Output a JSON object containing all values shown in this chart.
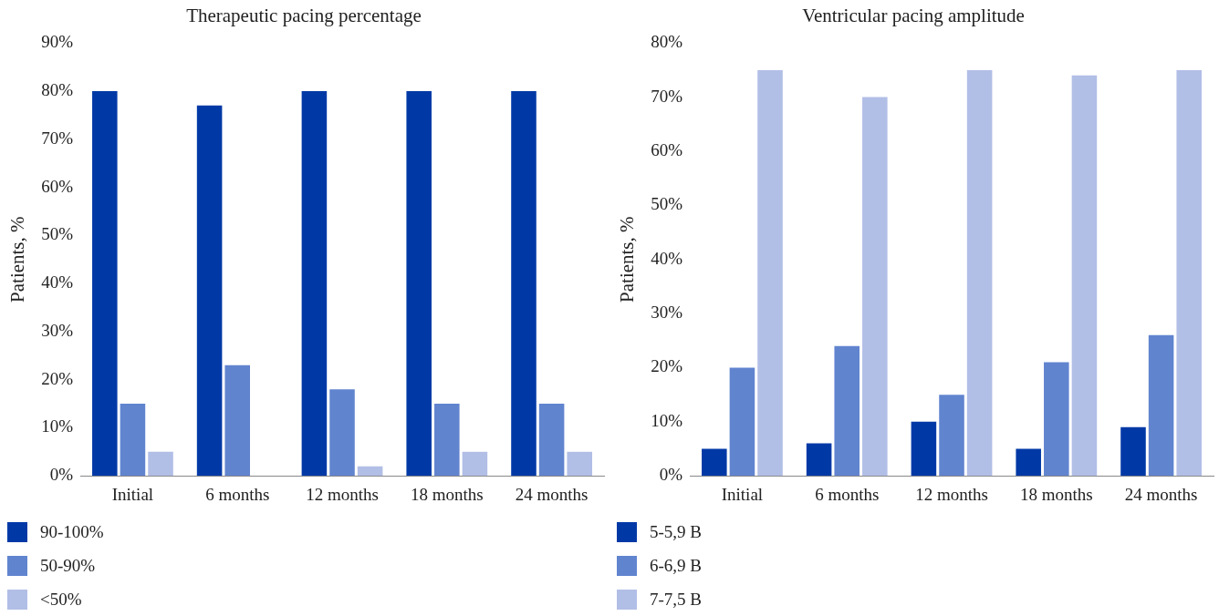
{
  "chart_data": [
    {
      "type": "bar",
      "title": "Therapeutic pacing percentage",
      "ylabel": "Patients, %",
      "categories": [
        "Initial",
        "6 months",
        "12 months",
        "18 months",
        "24 months"
      ],
      "series": [
        {
          "name": "90-100%",
          "color": "#0039a6",
          "values": [
            80,
            77,
            80,
            80,
            80
          ]
        },
        {
          "name": "50-90%",
          "color": "#6184cf",
          "values": [
            15,
            23,
            18,
            15,
            15
          ]
        },
        {
          "name": "<50%",
          "color": "#b1bee6",
          "values": [
            5,
            0,
            2,
            5,
            5
          ]
        }
      ],
      "ylim": [
        0,
        90
      ],
      "yticks": [
        {
          "value": 0,
          "label": "0%"
        },
        {
          "value": 10,
          "label": "10%"
        },
        {
          "value": 20,
          "label": "20%"
        },
        {
          "value": 30,
          "label": "30%"
        },
        {
          "value": 40,
          "label": "40%"
        },
        {
          "value": 50,
          "label": "50%"
        },
        {
          "value": 60,
          "label": "60%"
        },
        {
          "value": 70,
          "label": "70%"
        },
        {
          "value": 80,
          "label": "80%"
        },
        {
          "value": 90,
          "label": "90%"
        }
      ],
      "grid": false,
      "legend": "bottom left"
    },
    {
      "type": "bar",
      "title": "Ventricular pacing amplitude",
      "ylabel": "Patients, %",
      "categories": [
        "Initial",
        "6 months",
        "12 months",
        "18 months",
        "24 months"
      ],
      "series": [
        {
          "name": "5-5,9 В",
          "color": "#0039a6",
          "values": [
            5,
            6,
            10,
            5,
            9
          ]
        },
        {
          "name": "6-6,9 В",
          "color": "#6184cf",
          "values": [
            20,
            24,
            15,
            21,
            26
          ]
        },
        {
          "name": "7-7,5 В",
          "color": "#b1bee6",
          "values": [
            75,
            70,
            75,
            74,
            75
          ]
        }
      ],
      "ylim": [
        0,
        80
      ],
      "yticks": [
        {
          "value": 0,
          "label": "0%"
        },
        {
          "value": 10,
          "label": "10%"
        },
        {
          "value": 20,
          "label": "20%"
        },
        {
          "value": 30,
          "label": "30%"
        },
        {
          "value": 40,
          "label": "40%"
        },
        {
          "value": 50,
          "label": "50%"
        },
        {
          "value": 60,
          "label": "60%"
        },
        {
          "value": 70,
          "label": "70%"
        },
        {
          "value": 80,
          "label": "80%"
        }
      ],
      "grid": false,
      "legend": "bottom left"
    }
  ]
}
